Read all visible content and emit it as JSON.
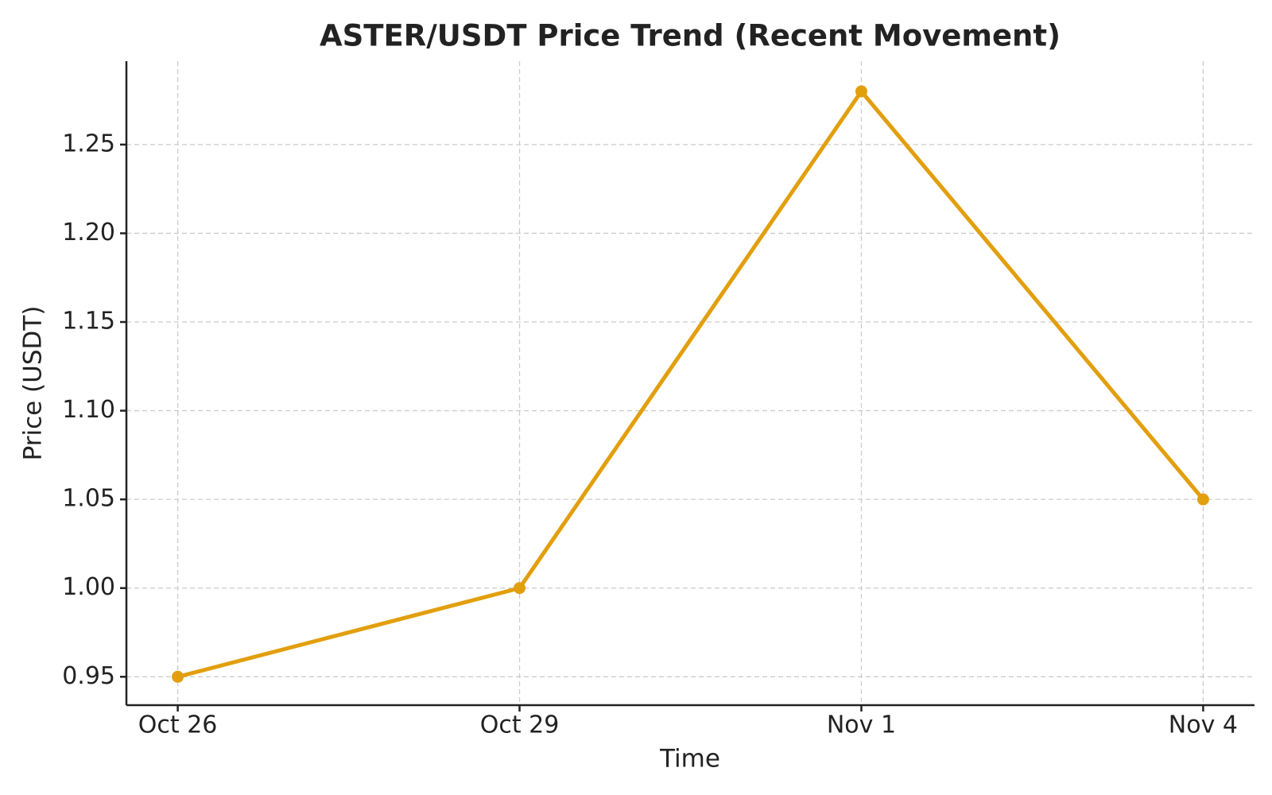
{
  "chart_data": {
    "type": "line",
    "title": "ASTER/USDT Price Trend (Recent Movement)",
    "x_label": "Time",
    "y_label": "Price (USDT)",
    "categories": [
      "Oct 26",
      "Oct 29",
      "Nov 1",
      "Nov 4"
    ],
    "series": [
      {
        "name": "ASTER/USDT",
        "color": "#e29f0d",
        "values": [
          0.95,
          1.0,
          1.28,
          1.05
        ]
      }
    ],
    "ylim": [
      0.934,
      1.297
    ],
    "yticks": [
      0.95,
      {
        "value": 1.0,
        "label": "1.00"
      },
      1.05,
      {
        "value": 1.1,
        "label": "1.10"
      },
      1.15,
      {
        "value": 1.2,
        "label": "1.20"
      },
      1.25
    ],
    "grid": true
  }
}
